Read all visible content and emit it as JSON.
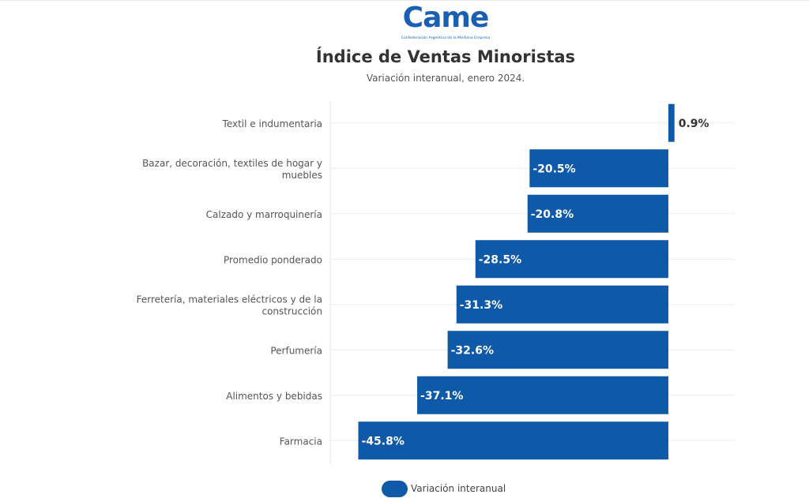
{
  "logo": {
    "word": "Came",
    "subtitle": "Confederación Argentina de la Mediana Empresa"
  },
  "chart_data": {
    "type": "bar",
    "orientation": "horizontal",
    "title": "Índice de Ventas Minoristas",
    "subtitle": "Variación interanual, enero 2024.",
    "categories": [
      "Textil e indumentaria",
      "Bazar, decoración, textiles de hogar y muebles",
      "Calzado y marroquinería",
      "Promedio ponderado",
      "Ferretería, materiales eléctricos y de la construcción",
      "Perfumería",
      "Alimentos y bebidas",
      "Farmacia"
    ],
    "category_lines": [
      [
        "Textil e indumentaria"
      ],
      [
        "Bazar, decoración, textiles de hogar y",
        "muebles"
      ],
      [
        "Calzado y marroquinería"
      ],
      [
        "Promedio ponderado"
      ],
      [
        "Ferretería, materiales eléctricos y de la",
        "construcción"
      ],
      [
        "Perfumería"
      ],
      [
        "Alimentos y bebidas"
      ],
      [
        "Farmacia"
      ]
    ],
    "series": [
      {
        "name": "Variación interanual",
        "values": [
          0.9,
          -20.5,
          -20.8,
          -28.5,
          -31.3,
          -32.6,
          -37.1,
          -45.8
        ],
        "labels": [
          "0.9%",
          "-20.5%",
          "-20.8%",
          "-28.5%",
          "-31.3%",
          "-32.6%",
          "-37.1%",
          "-45.8%"
        ]
      }
    ],
    "xlim": [
      -50,
      10
    ],
    "grid": true,
    "legend": "bottom-center",
    "colors": {
      "bar": "#0f5aa8",
      "grid": "#ebebeb",
      "label_inside": "#ffffff",
      "label_outside": "#333333"
    }
  }
}
